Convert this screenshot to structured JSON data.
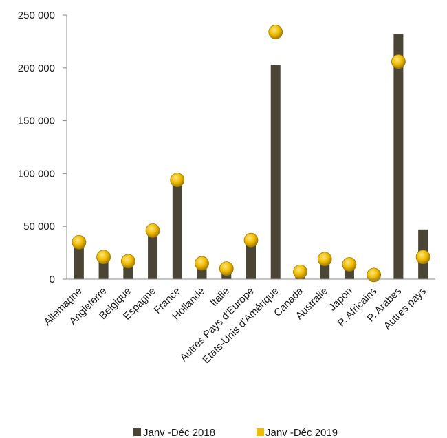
{
  "chart_data": {
    "type": "bar",
    "categories": [
      "Allemagne",
      "Angleterre",
      "Belgique",
      "Espagne",
      "France",
      "Hollande",
      "Italie",
      "Autres Pays d'Europe",
      "Etats-Unis d'Amérique",
      "Canada",
      "Australie",
      "Japon",
      "P. Africains",
      "P. Arabes",
      "Autres pays"
    ],
    "series": [
      {
        "name": "Janv -Déc 2018",
        "kind": "bar",
        "values": [
          32000,
          17000,
          13000,
          42000,
          90000,
          12000,
          7000,
          32000,
          203000,
          2000,
          15000,
          11000,
          1000,
          232000,
          47000
        ]
      },
      {
        "name": "Janv -Déc 2019",
        "kind": "point",
        "values": [
          35000,
          21000,
          17000,
          46000,
          94000,
          15000,
          10000,
          37000,
          234000,
          7000,
          19000,
          14000,
          4000,
          206000,
          21000
        ]
      }
    ],
    "yticks": [
      "0",
      "50 000",
      "100 000",
      "150 000",
      "200 000",
      "250 000"
    ],
    "ylim": [
      0,
      250000
    ],
    "legend_position": "bottom",
    "colors": {
      "bar": "#4a4535",
      "point": "#f0bc00",
      "point_edge": "#a67c00",
      "axis": "#8c8c8c"
    }
  }
}
